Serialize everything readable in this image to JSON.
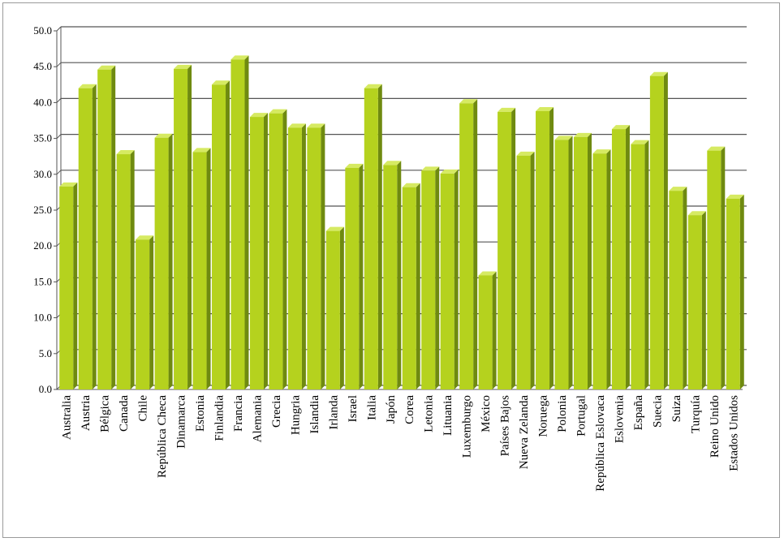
{
  "chart_data": {
    "type": "bar",
    "categories": [
      "Australia",
      "Austria",
      "Bélgica",
      "Canada",
      "Chile",
      "República Checa",
      "Dinamarca",
      "Estonia",
      "Finlandia",
      "Francia",
      "Alemania",
      "Grecia",
      "Hungria",
      "Islandia",
      "Irlanda",
      "Israel",
      "Italia",
      "Japón",
      "Corea",
      "Letonia",
      "Lituania",
      "Luxemburgo",
      "México",
      "Países Bajos",
      "Nueva Zelanda",
      "Noruega",
      "Polonia",
      "Portugal",
      "República Eslovaca",
      "Eslovenia",
      "España",
      "Suecia",
      "Suiza",
      "Turquía",
      "Reino Unido",
      "Estados Unidos"
    ],
    "values": [
      28.3,
      42.0,
      44.6,
      32.8,
      20.9,
      35.1,
      44.7,
      33.1,
      42.5,
      46.0,
      38.0,
      38.5,
      36.5,
      36.5,
      22.1,
      30.9,
      42.0,
      31.3,
      28.2,
      30.5,
      30.1,
      39.9,
      15.9,
      38.7,
      32.6,
      38.8,
      34.8,
      35.2,
      32.9,
      36.3,
      34.2,
      43.7,
      27.7,
      24.3,
      33.3,
      26.6
    ],
    "ylim": [
      0,
      50
    ],
    "yticks": [
      "0.0",
      "5.0",
      "10.0",
      "15.0",
      "20.0",
      "25.0",
      "30.0",
      "35.0",
      "40.0",
      "45.0",
      "50.0"
    ],
    "grid": true,
    "colors": {
      "front": "#b5d21e",
      "side": "#6f8a10",
      "top": "#d6ea62",
      "grid": "#555555"
    }
  }
}
